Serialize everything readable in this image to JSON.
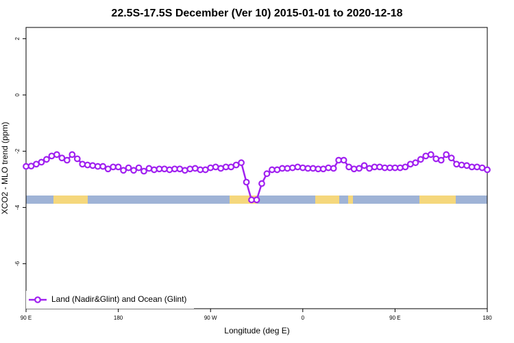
{
  "chart_data": {
    "type": "line",
    "title": "22.5S-17.5S December (Ver 10)   2015-01-01 to 2020-12-18",
    "x_label": "Longitude (deg E)",
    "y_label": "XCO2 - MLO trend (ppm)",
    "xlim": [
      90,
      540
    ],
    "xticks": [
      {
        "value": 90,
        "label": "90 E"
      },
      180,
      {
        "value": 270,
        "label": "90 W"
      },
      {
        "value": 360,
        "label": "0"
      },
      {
        "value": 450,
        "label": "90 E"
      },
      {
        "value": 540,
        "label": "180"
      }
    ],
    "ylim": [
      -7.6,
      2.4
    ],
    "yticks": [
      2,
      0,
      -2,
      -4,
      -6
    ],
    "legend": "bottom-left",
    "x": [
      90,
      95,
      100,
      105,
      110,
      115,
      120,
      125,
      130,
      135,
      140,
      145,
      150,
      155,
      160,
      165,
      170,
      175,
      180,
      185,
      190,
      195,
      200,
      205,
      210,
      215,
      220,
      225,
      230,
      235,
      240,
      245,
      250,
      255,
      260,
      265,
      270,
      275,
      280,
      285,
      290,
      295,
      300,
      305,
      310,
      315,
      320,
      325,
      330,
      335,
      340,
      345,
      350,
      355,
      360,
      365,
      370,
      375,
      380,
      385,
      390,
      395,
      400,
      405,
      410,
      415,
      420,
      425,
      430,
      435,
      440,
      445,
      450,
      455,
      460,
      465,
      470,
      475,
      480,
      485,
      490,
      495,
      500,
      505,
      510,
      515,
      520,
      525,
      530,
      535,
      540
    ],
    "series": [
      {
        "name": "Land (Nadir&Glint) and Ocean (Glint)",
        "color": "#a020f0",
        "values": [
          -2.54,
          -2.53,
          -2.46,
          -2.39,
          -2.29,
          -2.17,
          -2.12,
          -2.24,
          -2.32,
          -2.12,
          -2.27,
          -2.46,
          -2.49,
          -2.51,
          -2.54,
          -2.54,
          -2.63,
          -2.56,
          -2.56,
          -2.68,
          -2.59,
          -2.68,
          -2.59,
          -2.71,
          -2.61,
          -2.66,
          -2.63,
          -2.63,
          -2.66,
          -2.63,
          -2.63,
          -2.68,
          -2.63,
          -2.61,
          -2.66,
          -2.66,
          -2.59,
          -2.56,
          -2.61,
          -2.56,
          -2.56,
          -2.49,
          -2.41,
          -3.1,
          -3.73,
          -3.73,
          -3.15,
          -2.8,
          -2.66,
          -2.66,
          -2.61,
          -2.61,
          -2.59,
          -2.56,
          -2.59,
          -2.61,
          -2.61,
          -2.63,
          -2.63,
          -2.59,
          -2.61,
          -2.32,
          -2.32,
          -2.56,
          -2.63,
          -2.61,
          -2.51,
          -2.61,
          -2.56,
          -2.56,
          -2.59,
          -2.59,
          -2.59,
          -2.59,
          -2.56,
          -2.46,
          -2.41,
          -2.29,
          -2.17,
          -2.12,
          -2.27,
          -2.32,
          -2.12,
          -2.24,
          -2.46,
          -2.49,
          -2.51,
          -2.56,
          -2.56,
          -2.59,
          -2.66
        ]
      }
    ]
  }
}
